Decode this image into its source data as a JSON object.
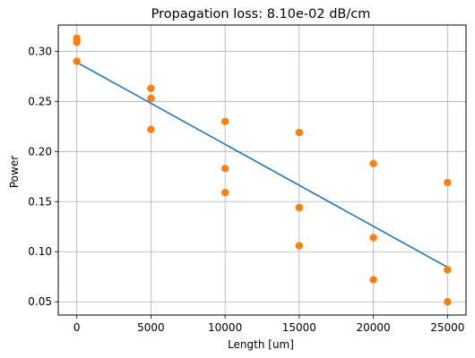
{
  "chart_data": {
    "type": "scatter",
    "title": "Propagation loss: 8.10e-02 dB/cm",
    "xlabel": "Length [um]",
    "ylabel": "Power",
    "xlim": [
      -1250,
      26250
    ],
    "ylim": [
      0.0368,
      0.3262
    ],
    "x_ticks": [
      0,
      5000,
      10000,
      15000,
      20000,
      25000
    ],
    "y_ticks": [
      0.05,
      0.1,
      0.15,
      0.2,
      0.25,
      0.3
    ],
    "x_tick_labels": [
      "0",
      "5000",
      "10000",
      "15000",
      "20000",
      "25000"
    ],
    "y_tick_labels": [
      "0.05",
      "0.10",
      "0.15",
      "0.20",
      "0.25",
      "0.30"
    ],
    "grid": true,
    "colors": {
      "points": "#ff7f0e",
      "fit": "#1f77b4",
      "grid": "#b0b0b0"
    },
    "points": [
      {
        "x": 0,
        "y": 0.313
      },
      {
        "x": 0,
        "y": 0.309
      },
      {
        "x": 0,
        "y": 0.29
      },
      {
        "x": 5000,
        "y": 0.263
      },
      {
        "x": 5000,
        "y": 0.253
      },
      {
        "x": 5000,
        "y": 0.222
      },
      {
        "x": 10000,
        "y": 0.23
      },
      {
        "x": 10000,
        "y": 0.183
      },
      {
        "x": 10000,
        "y": 0.159
      },
      {
        "x": 15000,
        "y": 0.219
      },
      {
        "x": 15000,
        "y": 0.144
      },
      {
        "x": 15000,
        "y": 0.106
      },
      {
        "x": 20000,
        "y": 0.188
      },
      {
        "x": 20000,
        "y": 0.114
      },
      {
        "x": 20000,
        "y": 0.072
      },
      {
        "x": 25000,
        "y": 0.169
      },
      {
        "x": 25000,
        "y": 0.082
      },
      {
        "x": 25000,
        "y": 0.05
      }
    ],
    "fit_line": [
      {
        "x": 0,
        "y": 0.289
      },
      {
        "x": 25000,
        "y": 0.0845
      }
    ]
  }
}
